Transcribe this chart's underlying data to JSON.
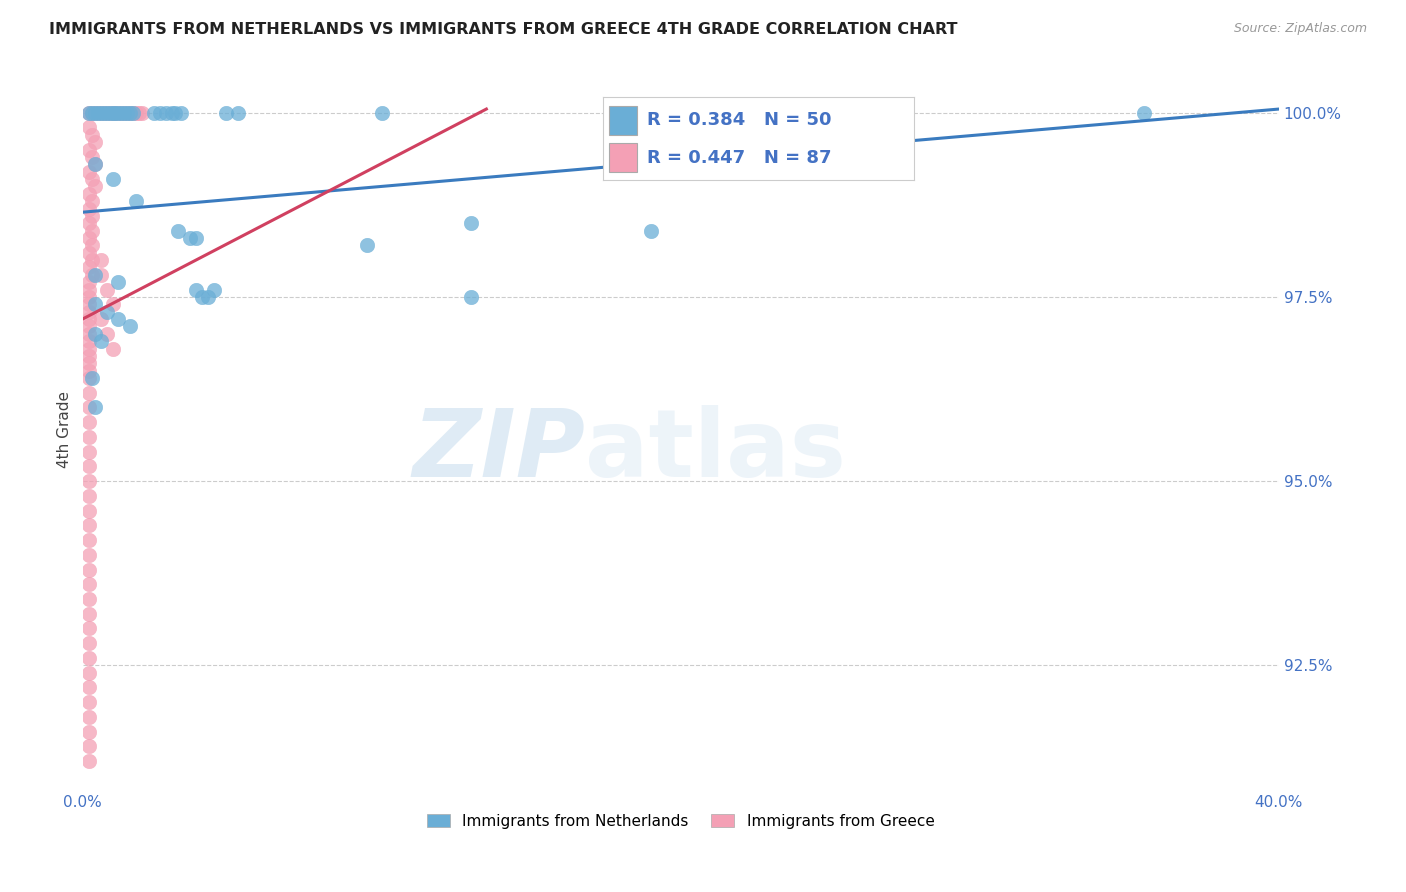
{
  "title": "IMMIGRANTS FROM NETHERLANDS VS IMMIGRANTS FROM GREECE 4TH GRADE CORRELATION CHART",
  "source": "Source: ZipAtlas.com",
  "ylabel": "4th Grade",
  "ytick_labels": [
    "100.0%",
    "97.5%",
    "95.0%",
    "92.5%"
  ],
  "ytick_values": [
    1.0,
    0.975,
    0.95,
    0.925
  ],
  "xlim": [
    0.0,
    0.4
  ],
  "ylim": [
    0.908,
    1.006
  ],
  "legend_blue_label": "Immigrants from Netherlands",
  "legend_pink_label": "Immigrants from Greece",
  "R_blue": 0.384,
  "N_blue": 50,
  "R_pink": 0.447,
  "N_pink": 87,
  "blue_color": "#6aaed6",
  "pink_color": "#f4a0b5",
  "trendline_blue": "#3a7bbf",
  "trendline_pink": "#d04060",
  "background_color": "#ffffff",
  "blue_trendline": [
    0.0,
    0.9865,
    0.4,
    1.0005
  ],
  "pink_trendline": [
    0.0,
    0.972,
    0.135,
    1.0005
  ],
  "blue_scatter": [
    [
      0.002,
      1.0
    ],
    [
      0.003,
      1.0
    ],
    [
      0.004,
      1.0
    ],
    [
      0.005,
      1.0
    ],
    [
      0.006,
      1.0
    ],
    [
      0.007,
      1.0
    ],
    [
      0.008,
      1.0
    ],
    [
      0.009,
      1.0
    ],
    [
      0.01,
      1.0
    ],
    [
      0.011,
      1.0
    ],
    [
      0.012,
      1.0
    ],
    [
      0.013,
      1.0
    ],
    [
      0.014,
      1.0
    ],
    [
      0.015,
      1.0
    ],
    [
      0.016,
      1.0
    ],
    [
      0.017,
      1.0
    ],
    [
      0.024,
      1.0
    ],
    [
      0.026,
      1.0
    ],
    [
      0.028,
      1.0
    ],
    [
      0.03,
      1.0
    ],
    [
      0.031,
      1.0
    ],
    [
      0.033,
      1.0
    ],
    [
      0.048,
      1.0
    ],
    [
      0.052,
      1.0
    ],
    [
      0.1,
      1.0
    ],
    [
      0.355,
      1.0
    ],
    [
      0.004,
      0.993
    ],
    [
      0.01,
      0.991
    ],
    [
      0.018,
      0.988
    ],
    [
      0.032,
      0.984
    ],
    [
      0.036,
      0.983
    ],
    [
      0.038,
      0.983
    ],
    [
      0.095,
      0.982
    ],
    [
      0.13,
      0.985
    ],
    [
      0.19,
      0.984
    ],
    [
      0.004,
      0.978
    ],
    [
      0.012,
      0.977
    ],
    [
      0.038,
      0.976
    ],
    [
      0.044,
      0.976
    ],
    [
      0.13,
      0.975
    ],
    [
      0.004,
      0.974
    ],
    [
      0.008,
      0.973
    ],
    [
      0.012,
      0.972
    ],
    [
      0.016,
      0.971
    ],
    [
      0.04,
      0.975
    ],
    [
      0.042,
      0.975
    ],
    [
      0.004,
      0.97
    ],
    [
      0.006,
      0.969
    ],
    [
      0.003,
      0.964
    ],
    [
      0.004,
      0.96
    ]
  ],
  "pink_scatter": [
    [
      0.002,
      1.0
    ],
    [
      0.003,
      1.0
    ],
    [
      0.004,
      1.0
    ],
    [
      0.005,
      1.0
    ],
    [
      0.006,
      1.0
    ],
    [
      0.007,
      1.0
    ],
    [
      0.008,
      1.0
    ],
    [
      0.009,
      1.0
    ],
    [
      0.01,
      1.0
    ],
    [
      0.011,
      1.0
    ],
    [
      0.012,
      1.0
    ],
    [
      0.013,
      1.0
    ],
    [
      0.014,
      1.0
    ],
    [
      0.015,
      1.0
    ],
    [
      0.016,
      1.0
    ],
    [
      0.017,
      1.0
    ],
    [
      0.018,
      1.0
    ],
    [
      0.019,
      1.0
    ],
    [
      0.02,
      1.0
    ],
    [
      0.002,
      0.998
    ],
    [
      0.003,
      0.997
    ],
    [
      0.004,
      0.996
    ],
    [
      0.002,
      0.995
    ],
    [
      0.003,
      0.994
    ],
    [
      0.004,
      0.993
    ],
    [
      0.002,
      0.992
    ],
    [
      0.003,
      0.991
    ],
    [
      0.004,
      0.99
    ],
    [
      0.002,
      0.989
    ],
    [
      0.003,
      0.988
    ],
    [
      0.002,
      0.987
    ],
    [
      0.003,
      0.986
    ],
    [
      0.002,
      0.985
    ],
    [
      0.003,
      0.984
    ],
    [
      0.002,
      0.983
    ],
    [
      0.003,
      0.982
    ],
    [
      0.002,
      0.981
    ],
    [
      0.003,
      0.98
    ],
    [
      0.002,
      0.979
    ],
    [
      0.003,
      0.978
    ],
    [
      0.002,
      0.977
    ],
    [
      0.002,
      0.976
    ],
    [
      0.002,
      0.975
    ],
    [
      0.002,
      0.974
    ],
    [
      0.002,
      0.973
    ],
    [
      0.002,
      0.972
    ],
    [
      0.002,
      0.971
    ],
    [
      0.002,
      0.97
    ],
    [
      0.002,
      0.969
    ],
    [
      0.002,
      0.968
    ],
    [
      0.002,
      0.967
    ],
    [
      0.002,
      0.966
    ],
    [
      0.002,
      0.965
    ],
    [
      0.002,
      0.964
    ],
    [
      0.002,
      0.962
    ],
    [
      0.002,
      0.96
    ],
    [
      0.002,
      0.958
    ],
    [
      0.002,
      0.956
    ],
    [
      0.002,
      0.954
    ],
    [
      0.002,
      0.952
    ],
    [
      0.002,
      0.95
    ],
    [
      0.002,
      0.948
    ],
    [
      0.002,
      0.946
    ],
    [
      0.002,
      0.944
    ],
    [
      0.002,
      0.942
    ],
    [
      0.002,
      0.94
    ],
    [
      0.002,
      0.938
    ],
    [
      0.002,
      0.936
    ],
    [
      0.002,
      0.934
    ],
    [
      0.002,
      0.932
    ],
    [
      0.002,
      0.93
    ],
    [
      0.002,
      0.928
    ],
    [
      0.002,
      0.926
    ],
    [
      0.002,
      0.924
    ],
    [
      0.002,
      0.922
    ],
    [
      0.002,
      0.92
    ],
    [
      0.002,
      0.918
    ],
    [
      0.002,
      0.916
    ],
    [
      0.002,
      0.914
    ],
    [
      0.002,
      0.912
    ],
    [
      0.006,
      0.98
    ],
    [
      0.006,
      0.978
    ],
    [
      0.008,
      0.976
    ],
    [
      0.01,
      0.974
    ],
    [
      0.006,
      0.972
    ],
    [
      0.008,
      0.97
    ],
    [
      0.01,
      0.968
    ]
  ]
}
